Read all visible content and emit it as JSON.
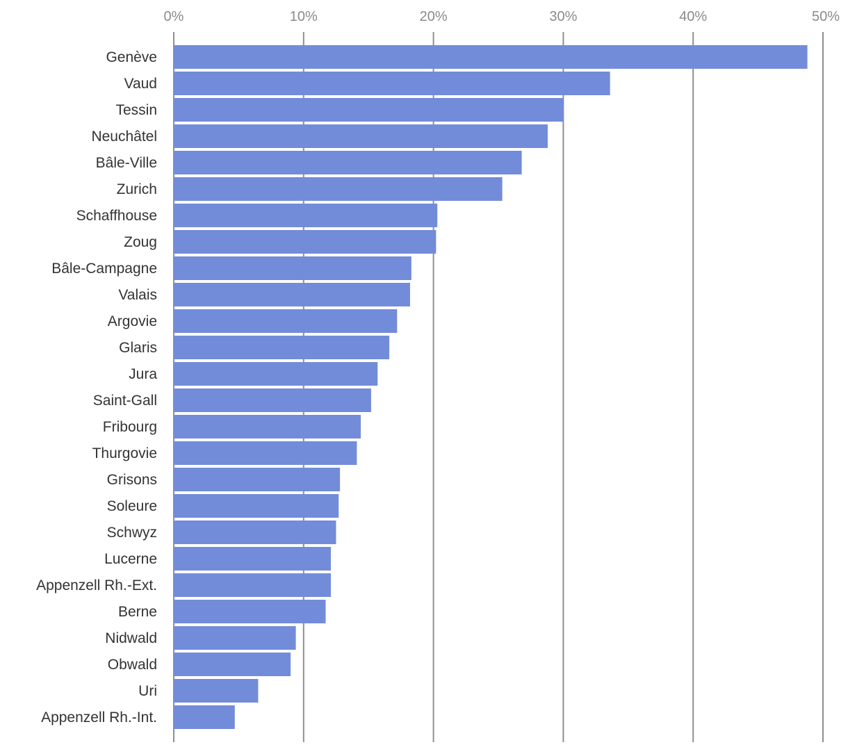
{
  "chart_data": {
    "type": "bar",
    "orientation": "horizontal",
    "title": "",
    "xlabel": "",
    "ylabel": "",
    "xlim": [
      0,
      50
    ],
    "x_ticks": [
      0,
      10,
      20,
      30,
      40,
      50
    ],
    "x_tick_labels": [
      "0%",
      "10%",
      "20%",
      "30%",
      "40%",
      "50%"
    ],
    "x_axis_position": "top",
    "grid": true,
    "legend": "none",
    "bar_color": "#738cd9",
    "grid_color": "#8f8f8f",
    "categories": [
      "Genève",
      "Vaud",
      "Tessin",
      "Neuchâtel",
      "Bâle-Ville",
      "Zurich",
      "Schaffhouse",
      "Zoug",
      "Bâle-Campagne",
      "Valais",
      "Argovie",
      "Glaris",
      "Jura",
      "Saint-Gall",
      "Fribourg",
      "Thurgovie",
      "Grisons",
      "Soleure",
      "Schwyz",
      "Lucerne",
      "Appenzell Rh.-Ext.",
      "Berne",
      "Nidwald",
      "Obwald",
      "Uri",
      "Appenzell Rh.-Int."
    ],
    "values": [
      48.8,
      33.6,
      30.0,
      28.8,
      26.8,
      25.3,
      20.3,
      20.2,
      18.3,
      18.2,
      17.2,
      16.6,
      15.7,
      15.2,
      14.4,
      14.1,
      12.8,
      12.7,
      12.5,
      12.1,
      12.1,
      11.7,
      9.4,
      9.0,
      6.5,
      4.7
    ]
  }
}
